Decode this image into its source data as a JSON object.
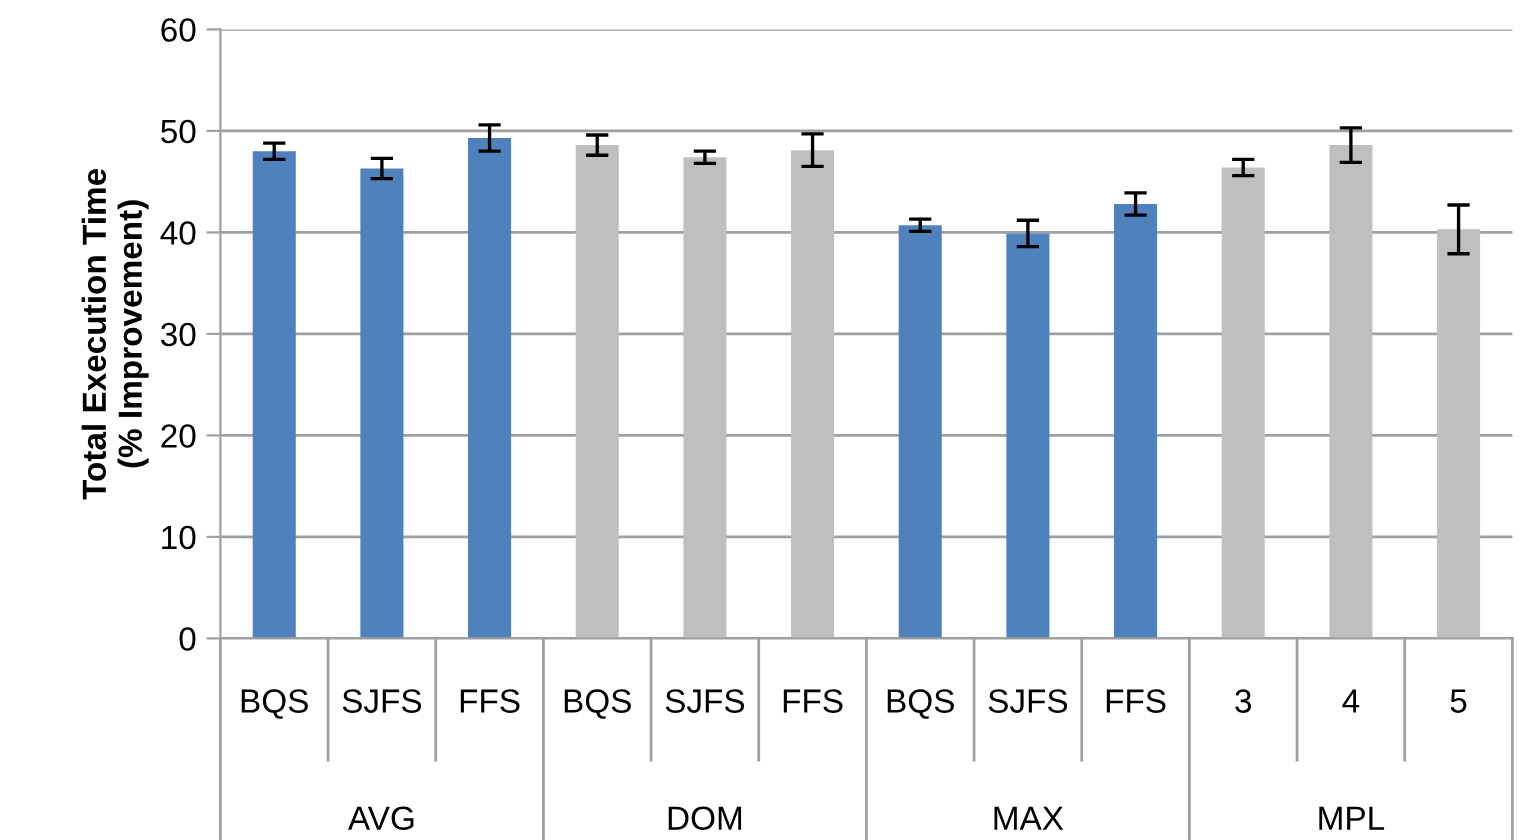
{
  "chart_data": {
    "type": "bar",
    "ylabel": "Total Execution Time\n(% Improvement)",
    "categories": [
      "BQS",
      "SJFS",
      "FFS",
      "BQS",
      "SJFS",
      "FFS",
      "BQS",
      "SJFS",
      "FFS",
      "3",
      "4",
      "5"
    ],
    "values": [
      48.0,
      46.3,
      49.3,
      48.6,
      47.4,
      48.1,
      40.7,
      39.9,
      42.8,
      46.4,
      48.6,
      40.3
    ],
    "errors": [
      0.8,
      1.0,
      1.3,
      1.0,
      0.6,
      1.6,
      0.6,
      1.3,
      1.1,
      0.8,
      1.7,
      2.4
    ],
    "colors": [
      "#4f81bd",
      "#4f81bd",
      "#4f81bd",
      "#bfbfbf",
      "#bfbfbf",
      "#bfbfbf",
      "#4f81bd",
      "#4f81bd",
      "#4f81bd",
      "#bfbfbf",
      "#bfbfbf",
      "#bfbfbf"
    ],
    "annotations": [
      "AVG",
      "DOM",
      "MAX",
      "MPL"
    ],
    "ylim": [
      0,
      60
    ],
    "yticks": [
      0,
      10,
      20,
      30,
      40,
      50,
      60
    ],
    "grid": "y"
  }
}
